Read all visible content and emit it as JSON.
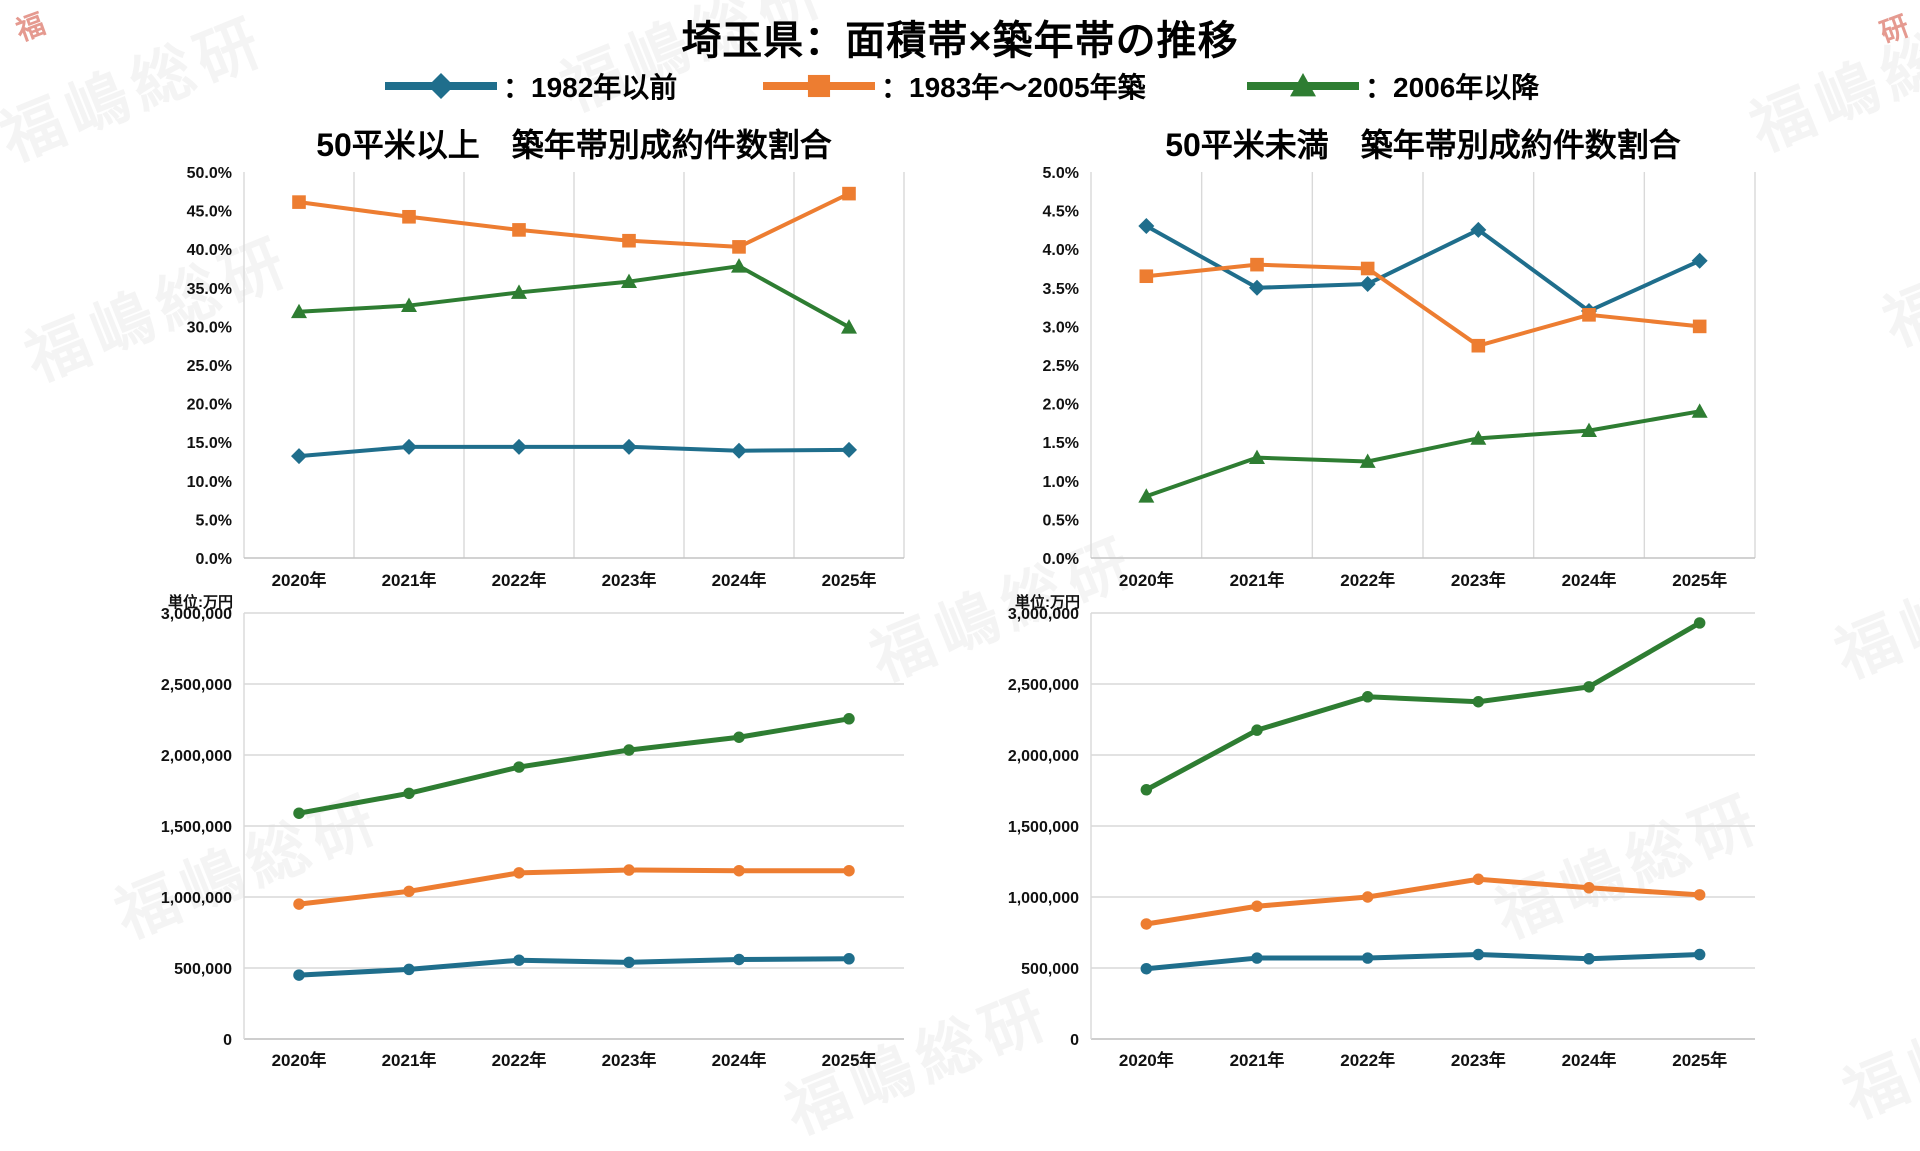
{
  "page_title": "埼玉県：面積帯×築年帯の推移",
  "legend": {
    "items": [
      {
        "label": "：1982年以前",
        "color": "#1F6E8C",
        "marker": "diamond"
      },
      {
        "label": "：1983年〜2005年築",
        "color": "#ED7D31",
        "marker": "square"
      },
      {
        "label": "：2006年以降",
        "color": "#2E7D32",
        "marker": "triangle"
      }
    ]
  },
  "watermark": {
    "text": "福嶋総研"
  },
  "corner_stamps": [
    {
      "text": "福"
    },
    {
      "text": "研"
    }
  ],
  "chart_data": [
    {
      "id": "share-50plus",
      "type": "line",
      "title": "50平米以上　築年帯別成約件数割合",
      "unit_label": "",
      "categories": [
        "2020年",
        "2021年",
        "2022年",
        "2023年",
        "2024年",
        "2025年"
      ],
      "ylim": [
        0,
        50
      ],
      "ytick_step": 5,
      "ytick_format": "percent",
      "grid": "vertical",
      "legend_position": "top-shared",
      "series": [
        {
          "name": "1982年以前",
          "color": "#1F6E8C",
          "marker": "diamond",
          "values": [
            13.2,
            14.4,
            14.4,
            14.4,
            13.9,
            14.0
          ]
        },
        {
          "name": "1983年〜2005年築",
          "color": "#ED7D31",
          "marker": "square",
          "values": [
            46.1,
            44.2,
            42.5,
            41.1,
            40.3,
            47.2
          ]
        },
        {
          "name": "2006年以降",
          "color": "#2E7D32",
          "marker": "triangle",
          "values": [
            31.9,
            32.7,
            34.4,
            35.8,
            37.8,
            29.9
          ]
        }
      ]
    },
    {
      "id": "share-under50",
      "type": "line",
      "title": "50平米未満　築年帯別成約件数割合",
      "unit_label": "",
      "categories": [
        "2020年",
        "2021年",
        "2022年",
        "2023年",
        "2024年",
        "2025年"
      ],
      "ylim": [
        0,
        5
      ],
      "ytick_step": 0.5,
      "ytick_format": "percent",
      "grid": "vertical",
      "legend_position": "top-shared",
      "series": [
        {
          "name": "1982年以前",
          "color": "#1F6E8C",
          "marker": "diamond",
          "values": [
            4.3,
            3.5,
            3.55,
            4.25,
            3.2,
            3.85
          ]
        },
        {
          "name": "1983年〜2005年築",
          "color": "#ED7D31",
          "marker": "square",
          "values": [
            3.65,
            3.8,
            3.75,
            2.75,
            3.15,
            3.0
          ]
        },
        {
          "name": "2006年以降",
          "color": "#2E7D32",
          "marker": "triangle",
          "values": [
            0.8,
            1.3,
            1.25,
            1.55,
            1.65,
            1.9
          ]
        }
      ]
    },
    {
      "id": "price-50plus",
      "type": "line",
      "title": "",
      "unit_label": "単位:万円",
      "categories": [
        "2020年",
        "2021年",
        "2022年",
        "2023年",
        "2024年",
        "2025年"
      ],
      "ylim": [
        0,
        3000000
      ],
      "ytick_step": 500000,
      "ytick_format": "comma",
      "grid": "horizontal",
      "legend_position": "top-shared",
      "series": [
        {
          "name": "1982年以前",
          "color": "#1F6E8C",
          "marker": "circle",
          "values": [
            450000,
            490000,
            555000,
            540000,
            560000,
            565000
          ]
        },
        {
          "name": "1983年〜2005年築",
          "color": "#ED7D31",
          "marker": "circle",
          "values": [
            950000,
            1040000,
            1170000,
            1190000,
            1185000,
            1185000
          ]
        },
        {
          "name": "2006年以降",
          "color": "#2E7D32",
          "marker": "circle",
          "values": [
            1590000,
            1730000,
            1915000,
            2035000,
            2125000,
            2255000
          ]
        }
      ]
    },
    {
      "id": "price-under50",
      "type": "line",
      "title": "",
      "unit_label": "単位:万円",
      "categories": [
        "2020年",
        "2021年",
        "2022年",
        "2023年",
        "2024年",
        "2025年"
      ],
      "ylim": [
        0,
        3000000
      ],
      "ytick_step": 500000,
      "ytick_format": "comma",
      "grid": "horizontal",
      "legend_position": "top-shared",
      "series": [
        {
          "name": "1982年以前",
          "color": "#1F6E8C",
          "marker": "circle",
          "values": [
            495000,
            570000,
            570000,
            595000,
            565000,
            595000
          ]
        },
        {
          "name": "1983年〜2005年築",
          "color": "#ED7D31",
          "marker": "circle",
          "values": [
            810000,
            935000,
            1000000,
            1125000,
            1065000,
            1015000
          ]
        },
        {
          "name": "2006年以降",
          "color": "#2E7D32",
          "marker": "circle",
          "values": [
            1755000,
            2175000,
            2410000,
            2375000,
            2480000,
            2930000
          ]
        }
      ]
    }
  ]
}
